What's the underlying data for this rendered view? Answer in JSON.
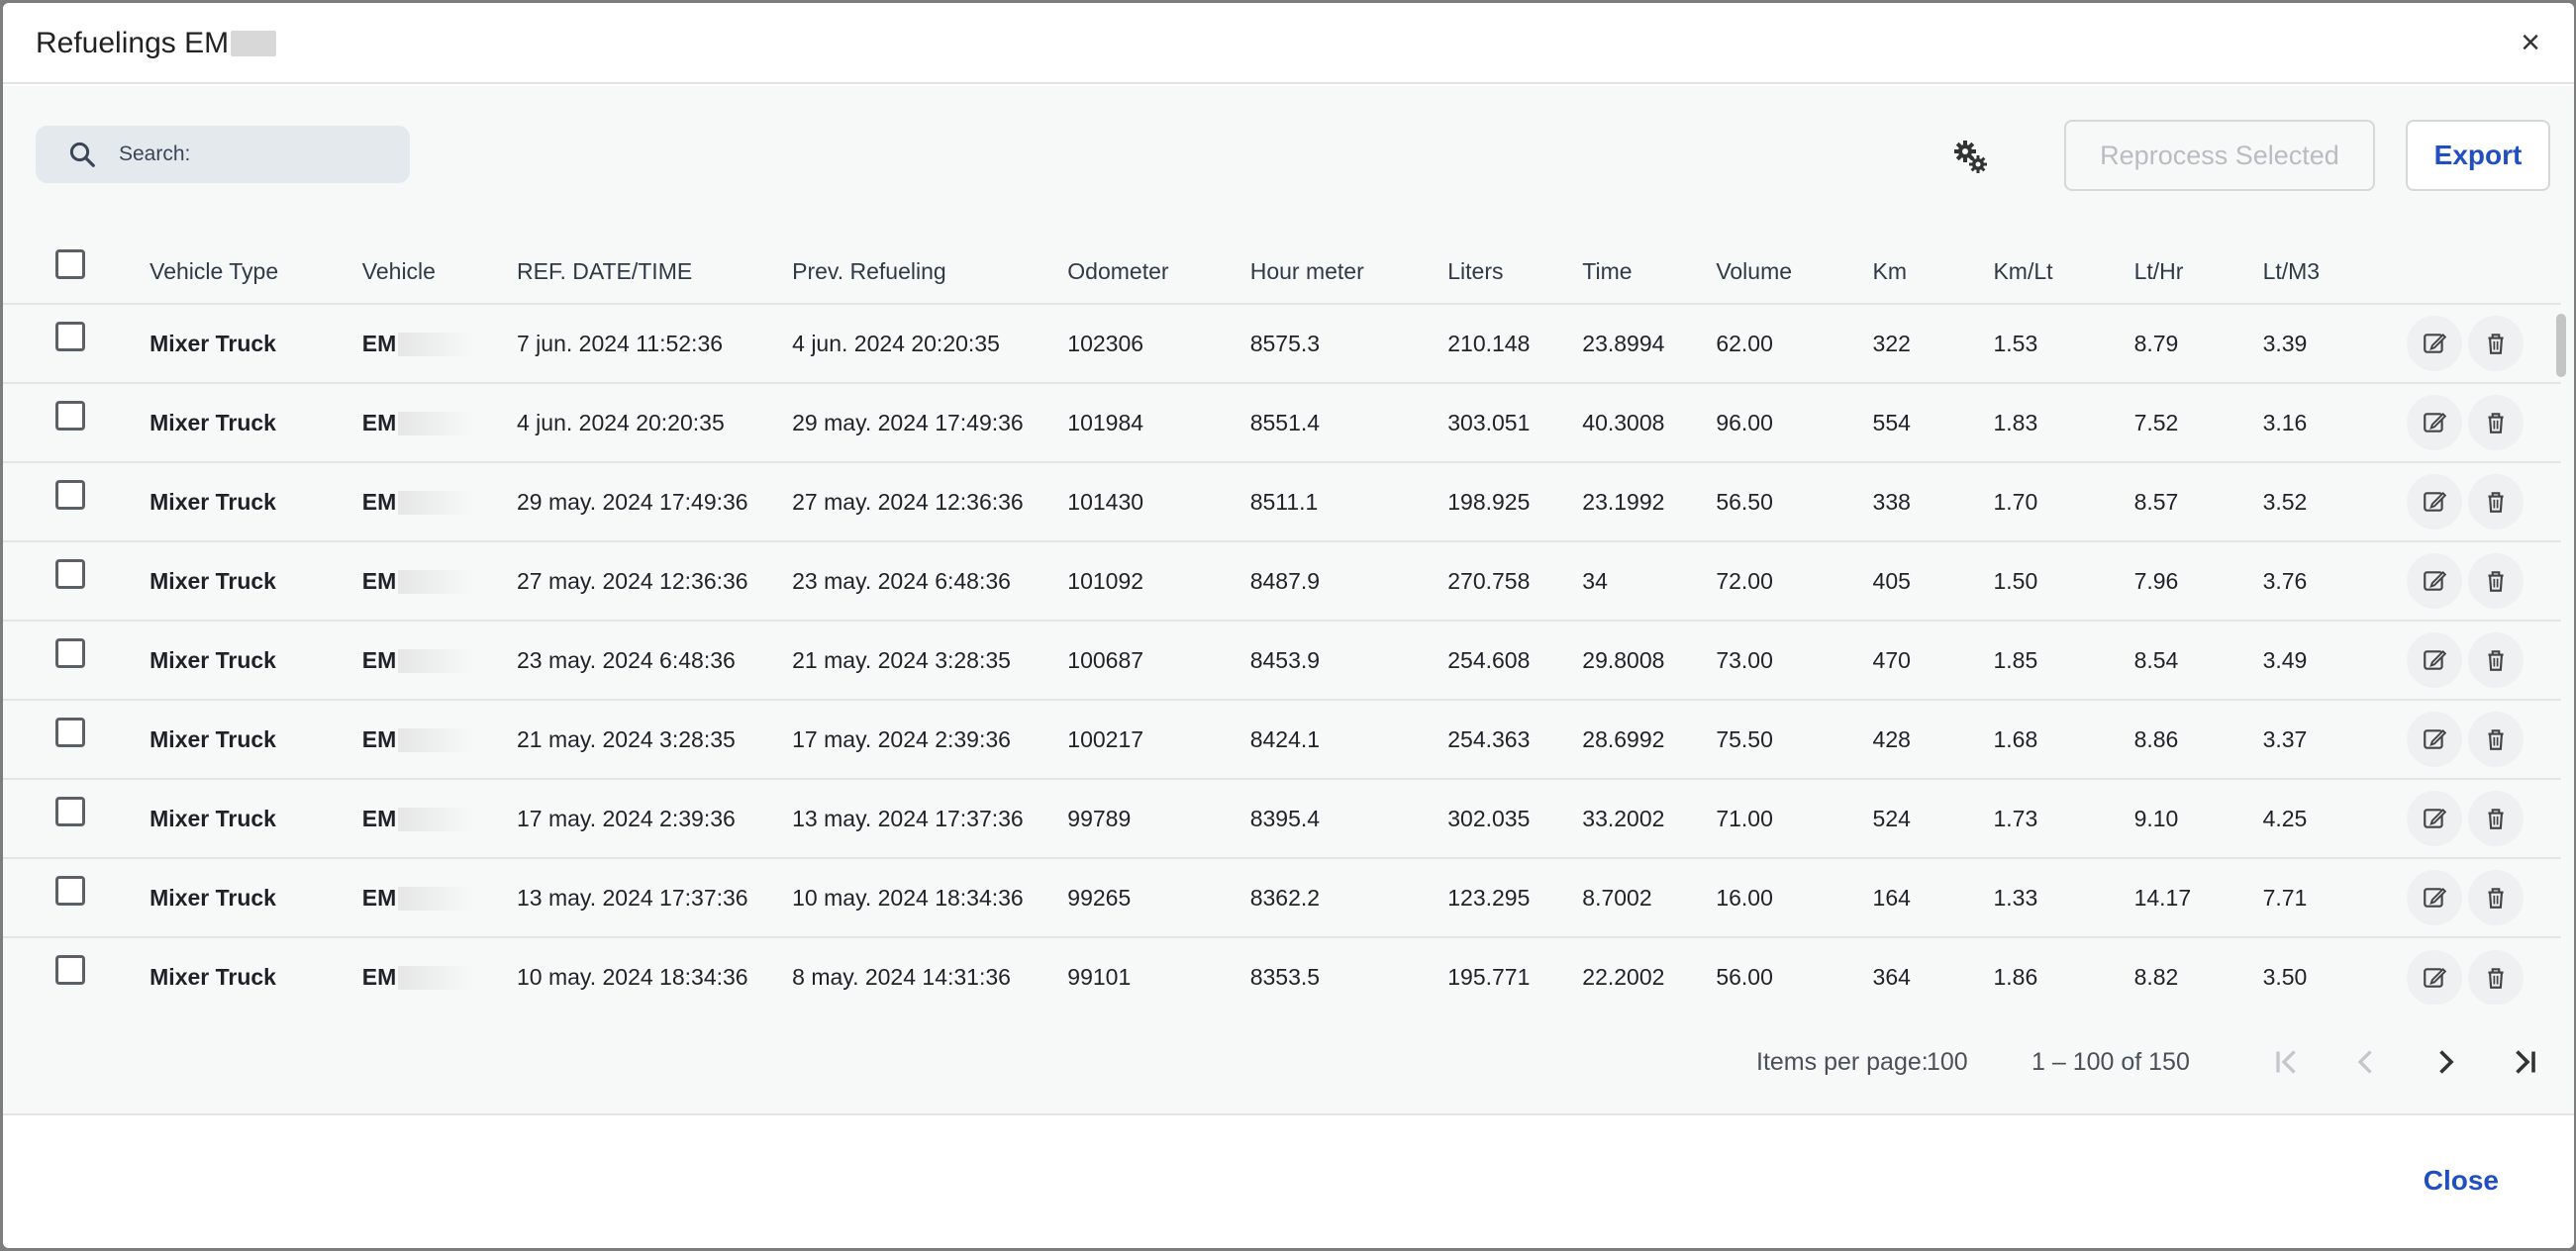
{
  "dialog": {
    "title": "Refuelings EM",
    "close_icon": "close-icon"
  },
  "toolbar": {
    "search_placeholder": "Search:",
    "settings_icon": "gears-icon",
    "reprocess_label": "Reprocess Selected",
    "export_label": "Export"
  },
  "table": {
    "columns": [
      "Vehicle Type",
      "Vehicle",
      "REF. DATE/TIME",
      "Prev. Refueling",
      "Odometer",
      "Hour meter",
      "Liters",
      "Time",
      "Volume",
      "Km",
      "Km/Lt",
      "Lt/Hr",
      "Lt/M3"
    ],
    "rows": [
      {
        "type": "Mixer Truck",
        "vehicle": "EM",
        "ref": "7 jun. 2024 11:52:36",
        "prev": "4 jun. 2024 20:20:35",
        "odometer": "102306",
        "hour": "8575.3",
        "liters": "210.148",
        "time": "23.8994",
        "volume": "62.00",
        "km": "322",
        "kmlt": "1.53",
        "lthr": "8.79",
        "ltm3": "3.39"
      },
      {
        "type": "Mixer Truck",
        "vehicle": "EM",
        "ref": "4 jun. 2024 20:20:35",
        "prev": "29 may. 2024 17:49:36",
        "odometer": "101984",
        "hour": "8551.4",
        "liters": "303.051",
        "time": "40.3008",
        "volume": "96.00",
        "km": "554",
        "kmlt": "1.83",
        "lthr": "7.52",
        "ltm3": "3.16"
      },
      {
        "type": "Mixer Truck",
        "vehicle": "EM",
        "ref": "29 may. 2024 17:49:36",
        "prev": "27 may. 2024 12:36:36",
        "odometer": "101430",
        "hour": "8511.1",
        "liters": "198.925",
        "time": "23.1992",
        "volume": "56.50",
        "km": "338",
        "kmlt": "1.70",
        "lthr": "8.57",
        "ltm3": "3.52"
      },
      {
        "type": "Mixer Truck",
        "vehicle": "EM",
        "ref": "27 may. 2024 12:36:36",
        "prev": "23 may. 2024 6:48:36",
        "odometer": "101092",
        "hour": "8487.9",
        "liters": "270.758",
        "time": "34",
        "volume": "72.00",
        "km": "405",
        "kmlt": "1.50",
        "lthr": "7.96",
        "ltm3": "3.76"
      },
      {
        "type": "Mixer Truck",
        "vehicle": "EM",
        "ref": "23 may. 2024 6:48:36",
        "prev": "21 may. 2024 3:28:35",
        "odometer": "100687",
        "hour": "8453.9",
        "liters": "254.608",
        "time": "29.8008",
        "volume": "73.00",
        "km": "470",
        "kmlt": "1.85",
        "lthr": "8.54",
        "ltm3": "3.49"
      },
      {
        "type": "Mixer Truck",
        "vehicle": "EM",
        "ref": "21 may. 2024 3:28:35",
        "prev": "17 may. 2024 2:39:36",
        "odometer": "100217",
        "hour": "8424.1",
        "liters": "254.363",
        "time": "28.6992",
        "volume": "75.50",
        "km": "428",
        "kmlt": "1.68",
        "lthr": "8.86",
        "ltm3": "3.37"
      },
      {
        "type": "Mixer Truck",
        "vehicle": "EM",
        "ref": "17 may. 2024 2:39:36",
        "prev": "13 may. 2024 17:37:36",
        "odometer": "99789",
        "hour": "8395.4",
        "liters": "302.035",
        "time": "33.2002",
        "volume": "71.00",
        "km": "524",
        "kmlt": "1.73",
        "lthr": "9.10",
        "ltm3": "4.25"
      },
      {
        "type": "Mixer Truck",
        "vehicle": "EM",
        "ref": "13 may. 2024 17:37:36",
        "prev": "10 may. 2024 18:34:36",
        "odometer": "99265",
        "hour": "8362.2",
        "liters": "123.295",
        "time": "8.7002",
        "volume": "16.00",
        "km": "164",
        "kmlt": "1.33",
        "lthr": "14.17",
        "ltm3": "7.71"
      },
      {
        "type": "Mixer Truck",
        "vehicle": "EM",
        "ref": "10 may. 2024 18:34:36",
        "prev": "8 may. 2024 14:31:36",
        "odometer": "99101",
        "hour": "8353.5",
        "liters": "195.771",
        "time": "22.2002",
        "volume": "56.00",
        "km": "364",
        "kmlt": "1.86",
        "lthr": "8.82",
        "ltm3": "3.50"
      }
    ],
    "row_actions": [
      "edit-icon",
      "delete-icon"
    ]
  },
  "paginator": {
    "items_per_page_label": "Items per page:",
    "items_per_page_value": "100",
    "range_label": "1 – 100 of 150"
  },
  "footer": {
    "close_label": "Close"
  },
  "colors": {
    "accent": "#1f4fc0",
    "disabled_text": "#b9bcc0",
    "search_bg": "#e4e9ee",
    "content_bg": "#f7f8f8"
  }
}
